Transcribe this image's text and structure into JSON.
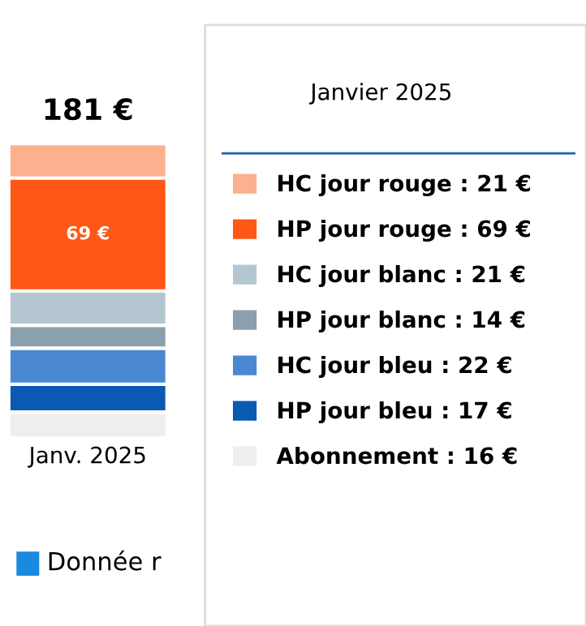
{
  "chart_data": {
    "type": "bar",
    "stacked": true,
    "categories": [
      "Janv. 2025"
    ],
    "legend_title": "Janvier 2025",
    "legend": "right",
    "series": [
      {
        "name": "Abonnement : 16 €",
        "color": "#eeeeee",
        "values": [
          16
        ]
      },
      {
        "name": "HP jour bleu : 17 €",
        "color": "#0a5ab4",
        "values": [
          17
        ]
      },
      {
        "name": "HC jour bleu : 22 €",
        "color": "#4a88d4",
        "values": [
          22
        ]
      },
      {
        "name": "HP jour blanc : 14 €",
        "color": "#8aa0ac",
        "values": [
          14
        ]
      },
      {
        "name": "HC jour blanc : 21 €",
        "color": "#b4c6d0",
        "values": [
          21
        ]
      },
      {
        "name": "HP jour rouge : 69 €",
        "color": "#fe5716",
        "values": [
          69
        ],
        "value_labels": [
          "69 €"
        ]
      },
      {
        "name": "HC jour rouge : 21 €",
        "color": "#fdb08e",
        "values": [
          21
        ]
      }
    ],
    "totals": [
      "181 €"
    ],
    "annotations": [
      "Donnée r"
    ]
  }
}
